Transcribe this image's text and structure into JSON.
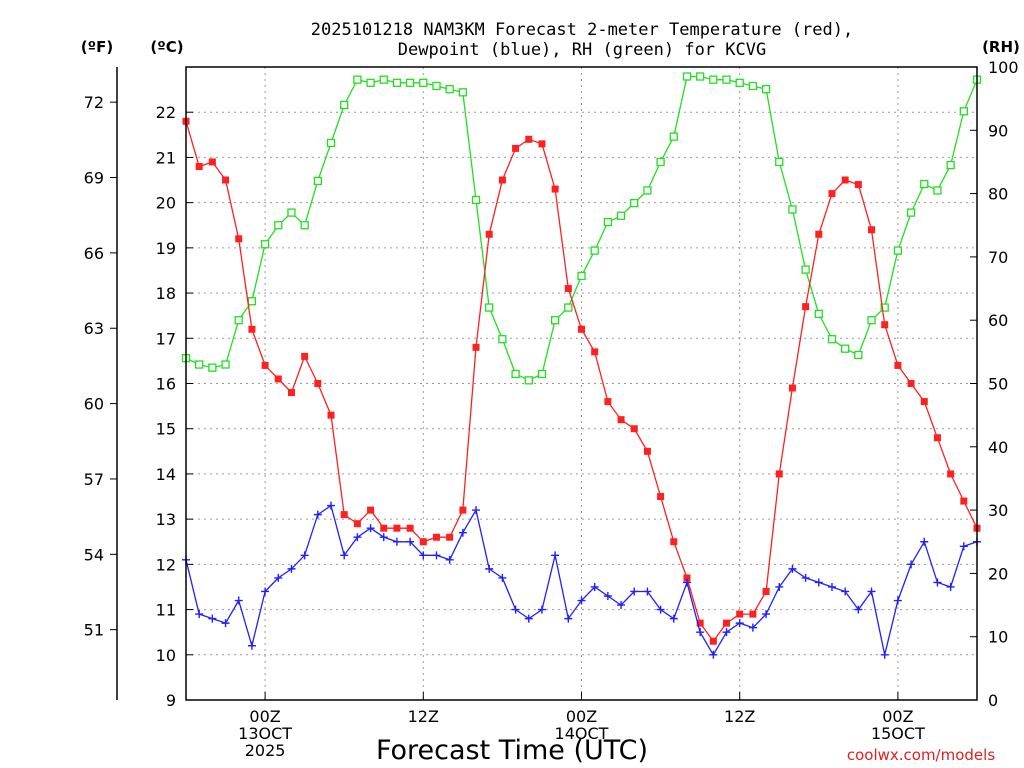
{
  "chart_data": {
    "type": "line",
    "title_line1": "2025101218 NAM3KM Forecast 2-meter Temperature (red),",
    "title_line2": "Dewpoint (blue), RH (green) for KCVG",
    "xlabel": "Forecast Time (UTC)",
    "watermark": "coolwx.com/models",
    "unit_labels": {
      "fahrenheit": "(ºF)",
      "celsius": "(ºC)",
      "rh": "(RH)"
    },
    "x_range_hours": [
      0,
      60
    ],
    "y_celsius_range": [
      9,
      23
    ],
    "y_rh_range": [
      0,
      100
    ],
    "celsius_ticks": [
      9,
      10,
      11,
      12,
      13,
      14,
      15,
      16,
      17,
      18,
      19,
      20,
      21,
      22
    ],
    "fahrenheit_ticks": [
      {
        "label": "51",
        "value": 51
      },
      {
        "label": "54",
        "value": 54
      },
      {
        "label": "57",
        "value": 57
      },
      {
        "label": "60",
        "value": 60
      },
      {
        "label": "63",
        "value": 63
      },
      {
        "label": "66",
        "value": 66
      },
      {
        "label": "69",
        "value": 69
      },
      {
        "label": "72",
        "value": 72
      }
    ],
    "rh_ticks": [
      0,
      10,
      20,
      30,
      40,
      50,
      60,
      70,
      80,
      90,
      100
    ],
    "x_ticks": [
      {
        "hour": 6,
        "lines": [
          "00Z",
          "13OCT",
          "2025"
        ]
      },
      {
        "hour": 18,
        "lines": [
          "12Z"
        ]
      },
      {
        "hour": 30,
        "lines": [
          "00Z",
          "14OCT"
        ]
      },
      {
        "hour": 42,
        "lines": [
          "12Z"
        ]
      },
      {
        "hour": 54,
        "lines": [
          "00Z",
          "15OCT"
        ]
      }
    ],
    "colors": {
      "temperature": "#ff2020",
      "dewpoint": "#2020ff",
      "rh": "#20e020",
      "grid": "#9a9a9a"
    },
    "series": [
      {
        "name": "Temperature",
        "units": "C",
        "values": [
          21.8,
          20.8,
          20.9,
          20.5,
          19.2,
          17.2,
          16.4,
          16.1,
          15.8,
          16.6,
          16.0,
          15.3,
          13.1,
          12.9,
          13.2,
          12.8,
          12.8,
          12.8,
          12.5,
          12.6,
          12.6,
          13.2,
          16.8,
          19.3,
          20.5,
          21.2,
          21.4,
          21.3,
          20.3,
          18.1,
          17.2,
          16.7,
          15.6,
          15.2,
          15.0,
          14.5,
          13.5,
          12.5,
          11.7,
          10.7,
          10.3,
          10.7,
          10.9,
          10.9,
          11.4,
          14.0,
          15.9,
          17.7,
          19.3,
          20.2,
          20.5,
          20.4,
          19.4,
          17.3,
          16.4,
          16.0,
          15.6,
          14.8,
          14.0,
          13.4,
          12.8
        ]
      },
      {
        "name": "Dewpoint",
        "units": "C",
        "values": [
          12.1,
          10.9,
          10.8,
          10.7,
          11.2,
          10.2,
          11.4,
          11.7,
          11.9,
          12.2,
          13.1,
          13.3,
          12.2,
          12.6,
          12.8,
          12.6,
          12.5,
          12.5,
          12.2,
          12.2,
          12.1,
          12.7,
          13.2,
          11.9,
          11.7,
          11.0,
          10.8,
          11.0,
          12.2,
          10.8,
          11.2,
          11.5,
          11.3,
          11.1,
          11.4,
          11.4,
          11.0,
          10.8,
          11.6,
          10.5,
          10.0,
          10.5,
          10.7,
          10.6,
          10.9,
          11.5,
          11.9,
          11.7,
          11.6,
          11.5,
          11.4,
          11.0,
          11.4,
          10.0,
          11.2,
          12.0,
          12.5,
          11.6,
          11.5,
          12.4,
          12.5
        ]
      },
      {
        "name": "RH",
        "units": "%",
        "values": [
          54,
          53,
          52.5,
          53,
          60,
          63,
          72,
          75,
          77,
          75,
          82,
          88,
          94,
          98,
          97.5,
          98,
          97.5,
          97.5,
          97.5,
          97,
          96.5,
          96,
          79,
          62,
          57,
          51.5,
          50.5,
          51.5,
          60,
          62,
          67,
          71,
          75.5,
          76.5,
          78.5,
          80.5,
          85,
          89,
          98.5,
          98.5,
          98,
          98,
          97.5,
          97,
          96.5,
          85,
          77.5,
          68,
          61,
          57,
          55.5,
          54.5,
          60,
          62,
          71,
          77,
          81.5,
          80.5,
          84.5,
          93,
          98
        ]
      }
    ]
  }
}
